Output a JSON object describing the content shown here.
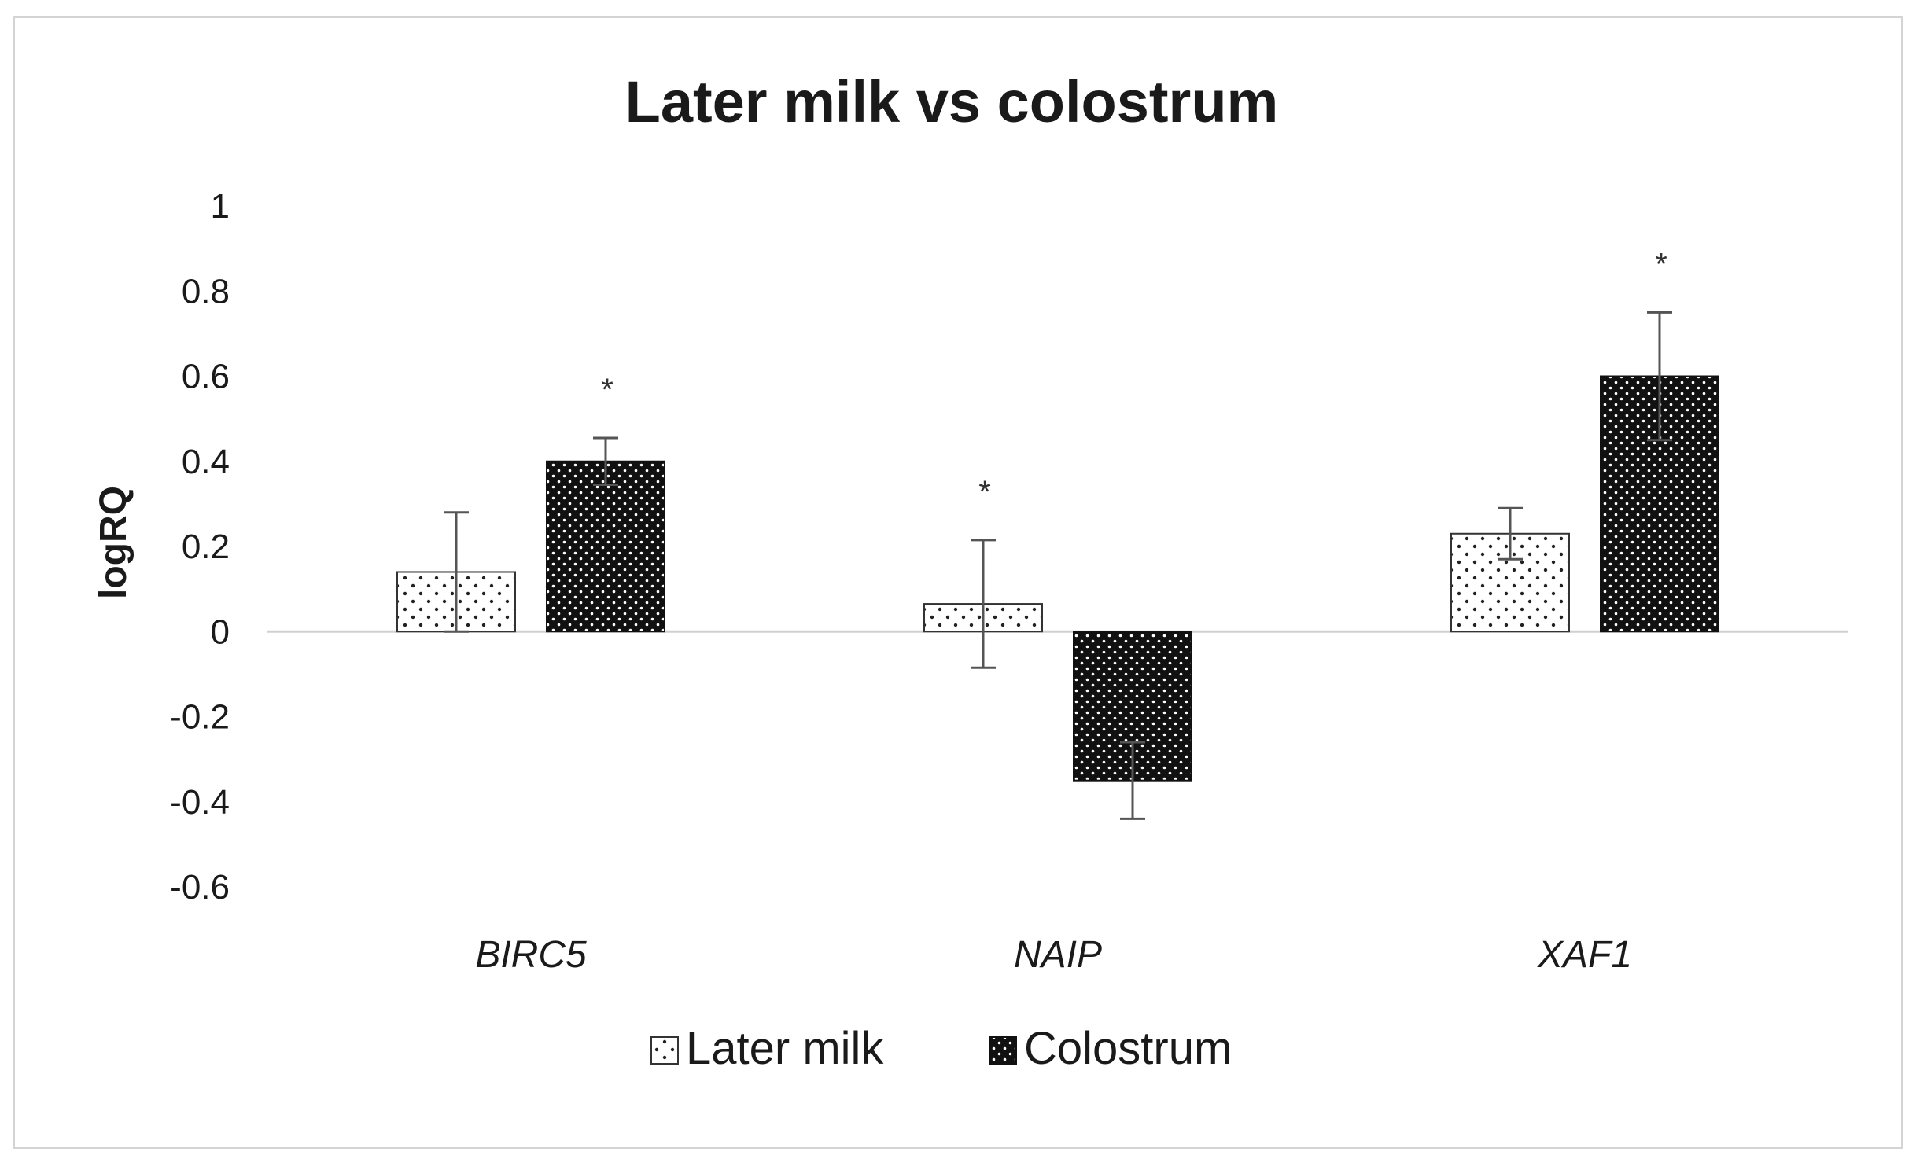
{
  "colors": {
    "frame": "#d4d4d4",
    "axis_line": "#d0d0d0",
    "dark_bar": "#111111",
    "light_bar": "#ffffff",
    "error_bar": "#555555"
  },
  "chart_data": {
    "type": "bar",
    "title": "Later milk vs colostrum",
    "xlabel": "",
    "ylabel": "logRQ",
    "ylim": [
      -0.6,
      1
    ],
    "yticks": [
      "1",
      "0.8",
      "0.6",
      "0.4",
      "0.2",
      "0",
      "-0.2",
      "-0.4",
      "-0.6"
    ],
    "ytick_values": [
      1,
      0.8,
      0.6,
      0.4,
      0.2,
      0,
      -0.2,
      -0.4,
      -0.6
    ],
    "categories": [
      "BIRC5",
      "NAIP",
      "XAF1"
    ],
    "series": [
      {
        "name": "Later milk",
        "pattern": "sparse white dots on white",
        "values": [
          0.14,
          0.065,
          0.23
        ],
        "errors": [
          0.14,
          0.15,
          0.06
        ]
      },
      {
        "name": "Colostrum",
        "pattern": "white dots on black",
        "values": [
          0.4,
          -0.35,
          0.6
        ],
        "errors": [
          0.055,
          0.09,
          0.15
        ]
      }
    ],
    "annotations": [
      {
        "category": "BIRC5",
        "series": "Colostrum",
        "text": "*"
      },
      {
        "category": "NAIP",
        "series": "Later milk",
        "text": "*"
      },
      {
        "category": "XAF1",
        "series": "Colostrum",
        "text": "*"
      }
    ],
    "grid": false,
    "legend_position": "bottom"
  }
}
